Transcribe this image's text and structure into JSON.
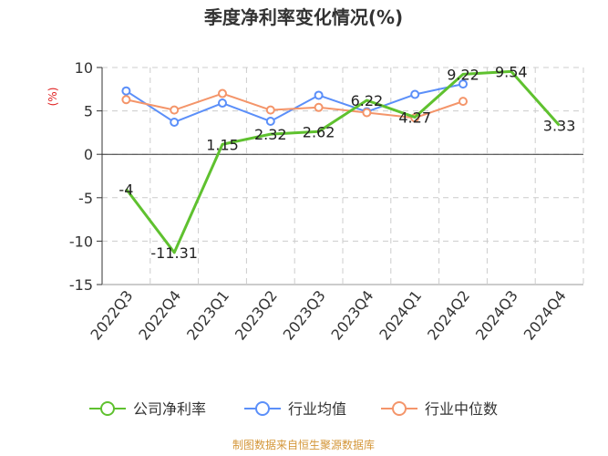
{
  "chart_data": {
    "type": "line",
    "title": "季度净利率变化情况(%)",
    "ylabel": "(%)",
    "categories": [
      "2022Q3",
      "2022Q4",
      "2023Q1",
      "2023Q2",
      "2023Q3",
      "2023Q4",
      "2024Q1",
      "2024Q2",
      "2024Q3",
      "2024Q4"
    ],
    "ylim": [
      -15,
      10
    ],
    "yticks": [
      10,
      5,
      0,
      -5,
      -10,
      -15
    ],
    "grid": true,
    "legend_position": "bottom",
    "series": [
      {
        "name": "公司净利率",
        "color": "#5fc12f",
        "values": [
          -4,
          -11.31,
          1.15,
          2.32,
          2.62,
          6.22,
          4.27,
          9.22,
          9.54,
          3.33
        ],
        "labels": [
          "-4",
          "-11.31",
          "1.15",
          "2.32",
          "2.62",
          "6.22",
          "4.27",
          "9.22",
          "9.54",
          "3.33"
        ]
      },
      {
        "name": "行业均值",
        "color": "#5b8ff9",
        "values": [
          7.3,
          3.7,
          5.9,
          3.8,
          6.8,
          4.9,
          6.9,
          8.1,
          null,
          null
        ]
      },
      {
        "name": "行业中位数",
        "color": "#f4956a",
        "values": [
          6.3,
          5.1,
          7.0,
          5.1,
          5.4,
          4.8,
          4.2,
          6.1,
          null,
          null
        ]
      }
    ],
    "source": "制图数据来自恒生聚源数据库"
  }
}
